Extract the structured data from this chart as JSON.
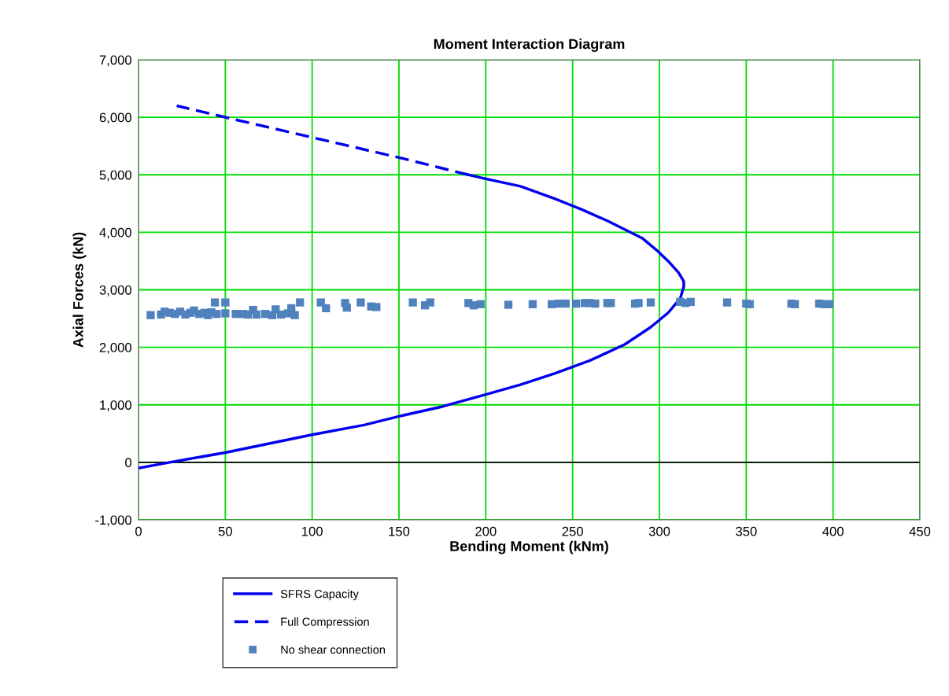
{
  "chart_data": {
    "type": "line",
    "title": "Moment Interaction Diagram",
    "xlabel": "Bending Moment (kNm)",
    "ylabel": "Axial Forces (kN)",
    "xlim": [
      0,
      450
    ],
    "xticks": [
      0,
      50,
      100,
      150,
      200,
      250,
      300,
      350,
      400,
      450
    ],
    "ylim": [
      -1000,
      7000
    ],
    "yticks": [
      {
        "value": -1000,
        "label": "-1,000"
      },
      0,
      {
        "value": 1000,
        "label": "1,000"
      },
      {
        "value": 2000,
        "label": "2,000"
      },
      {
        "value": 3000,
        "label": "3,000"
      },
      {
        "value": 4000,
        "label": "4,000"
      },
      {
        "value": 5000,
        "label": "5,000"
      },
      {
        "value": 6000,
        "label": "6,000"
      },
      {
        "value": 7000,
        "label": "7,000"
      }
    ],
    "grid": true,
    "legend": "bottom left",
    "ref_lines": [
      {
        "axis": "y",
        "value": 0,
        "color": "#000000"
      }
    ],
    "series": [
      {
        "name": "SFRS Capacity",
        "color": "#0000ee",
        "line_style": "solid",
        "marker": "none",
        "x": [
          0,
          18,
          50,
          100,
          130,
          150,
          175,
          200,
          220,
          240,
          260,
          280,
          295,
          305,
          312,
          314,
          314,
          311,
          305,
          298,
          290,
          280,
          270,
          255,
          240,
          220,
          200,
          190
        ],
        "values": [
          -100,
          0,
          170,
          480,
          650,
          800,
          970,
          1180,
          1350,
          1550,
          1770,
          2050,
          2350,
          2600,
          2850,
          3050,
          3150,
          3300,
          3500,
          3700,
          3900,
          4050,
          4200,
          4400,
          4580,
          4800,
          4930,
          5000
        ]
      },
      {
        "name": "Full Compression",
        "color": "#0000ee",
        "line_style": "dashed",
        "marker": "none",
        "x": [
          190,
          150,
          100,
          50,
          22
        ],
        "values": [
          5000,
          5300,
          5650,
          6000,
          6200
        ]
      },
      {
        "name": "No shear connection",
        "type": "scatter",
        "color": "#4f81bd",
        "marker": "square",
        "x": [
          7,
          13,
          15,
          18,
          21,
          24,
          27,
          30,
          32,
          35,
          38,
          40,
          42,
          44,
          45,
          50,
          50,
          56,
          60,
          63,
          66,
          68,
          73,
          77,
          79,
          82,
          86,
          88,
          90,
          93,
          105,
          108,
          119,
          120,
          128,
          134,
          137,
          158,
          165,
          168,
          190,
          193,
          197,
          213,
          227,
          238,
          242,
          246,
          252,
          257,
          260,
          263,
          270,
          272,
          286,
          288,
          295,
          312,
          315,
          318,
          339,
          350,
          352,
          376,
          378,
          392,
          395,
          398
        ],
        "values": [
          2560,
          2570,
          2620,
          2600,
          2580,
          2620,
          2570,
          2600,
          2640,
          2580,
          2600,
          2560,
          2610,
          2780,
          2580,
          2780,
          2590,
          2580,
          2580,
          2570,
          2650,
          2570,
          2580,
          2560,
          2660,
          2570,
          2590,
          2680,
          2560,
          2780,
          2780,
          2680,
          2770,
          2690,
          2780,
          2710,
          2700,
          2780,
          2730,
          2780,
          2770,
          2730,
          2750,
          2740,
          2750,
          2750,
          2760,
          2760,
          2760,
          2770,
          2770,
          2760,
          2770,
          2770,
          2760,
          2770,
          2780,
          2790,
          2770,
          2790,
          2780,
          2760,
          2750,
          2760,
          2750,
          2760,
          2750,
          2750
        ]
      }
    ]
  }
}
